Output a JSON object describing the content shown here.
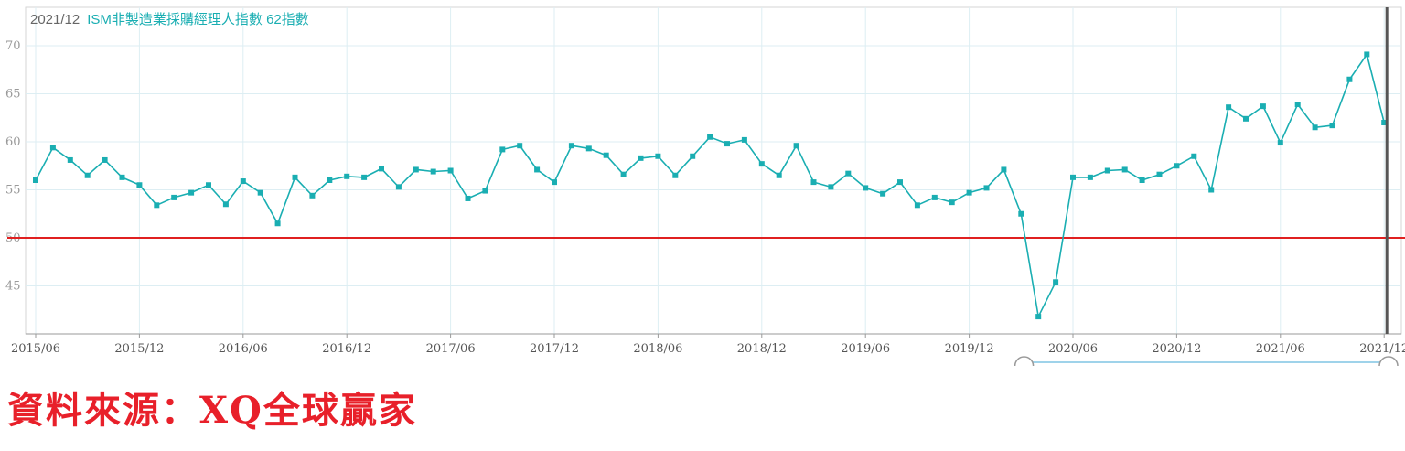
{
  "header": {
    "date": "2021/12",
    "series_label": "ISM非製造業採購經理人指數 62指數"
  },
  "source_text": "資料來源：XQ全球贏家",
  "chart_data": {
    "type": "line",
    "title": "",
    "xlabel": "",
    "ylabel": "",
    "ylim": [
      40,
      74
    ],
    "yticks": [
      45,
      50,
      55,
      60,
      65,
      70
    ],
    "ytick_labels": [
      "45",
      "50",
      "55",
      "60",
      "65",
      "70"
    ],
    "x_tick_labels": [
      "2015/06",
      "2015/12",
      "2016/06",
      "2016/12",
      "2017/06",
      "2017/12",
      "2018/06",
      "2018/12",
      "2019/06",
      "2019/12",
      "2020/06",
      "2020/12",
      "2021/06",
      "2021/12"
    ],
    "grid": true,
    "reference_line": {
      "value": 50,
      "color": "#e02020"
    },
    "colors": {
      "series": "#1aaeb2",
      "cursor": "#555555",
      "grid": "#ddeef3"
    },
    "series": [
      {
        "name": "ISM非製造業採購經理人指數",
        "x": [
          "2015/06",
          "2015/07",
          "2015/08",
          "2015/09",
          "2015/10",
          "2015/11",
          "2015/12",
          "2016/01",
          "2016/02",
          "2016/03",
          "2016/04",
          "2016/05",
          "2016/06",
          "2016/07",
          "2016/08",
          "2016/09",
          "2016/10",
          "2016/11",
          "2016/12",
          "2017/01",
          "2017/02",
          "2017/03",
          "2017/04",
          "2017/05",
          "2017/06",
          "2017/07",
          "2017/08",
          "2017/09",
          "2017/10",
          "2017/11",
          "2017/12",
          "2018/01",
          "2018/02",
          "2018/03",
          "2018/04",
          "2018/05",
          "2018/06",
          "2018/07",
          "2018/08",
          "2018/09",
          "2018/10",
          "2018/11",
          "2018/12",
          "2019/01",
          "2019/02",
          "2019/03",
          "2019/04",
          "2019/05",
          "2019/06",
          "2019/07",
          "2019/08",
          "2019/09",
          "2019/10",
          "2019/11",
          "2019/12",
          "2020/01",
          "2020/02",
          "2020/03",
          "2020/04",
          "2020/05",
          "2020/06",
          "2020/07",
          "2020/08",
          "2020/09",
          "2020/10",
          "2020/11",
          "2020/12",
          "2021/01",
          "2021/02",
          "2021/03",
          "2021/04",
          "2021/05",
          "2021/06",
          "2021/07",
          "2021/08",
          "2021/09",
          "2021/10",
          "2021/11",
          "2021/12"
        ],
        "values": [
          56.0,
          59.4,
          58.1,
          56.5,
          58.1,
          56.3,
          55.5,
          53.4,
          54.2,
          54.7,
          55.5,
          53.5,
          55.9,
          54.7,
          51.5,
          56.3,
          54.4,
          56.0,
          56.4,
          56.3,
          57.2,
          55.3,
          57.1,
          56.9,
          57.0,
          54.1,
          54.9,
          59.2,
          59.6,
          57.1,
          55.8,
          59.6,
          59.3,
          58.6,
          56.6,
          58.3,
          58.5,
          56.5,
          58.5,
          60.5,
          59.8,
          60.2,
          57.7,
          56.5,
          59.6,
          55.8,
          55.3,
          56.7,
          55.2,
          54.6,
          55.8,
          53.4,
          54.2,
          53.7,
          54.7,
          55.2,
          57.1,
          52.5,
          41.8,
          45.4,
          56.3,
          56.3,
          57.0,
          57.1,
          56.0,
          56.6,
          57.5,
          58.5,
          55.0,
          63.6,
          62.4,
          63.7,
          59.9,
          63.9,
          61.5,
          61.7,
          66.5,
          69.1,
          62.0
        ]
      }
    ]
  }
}
